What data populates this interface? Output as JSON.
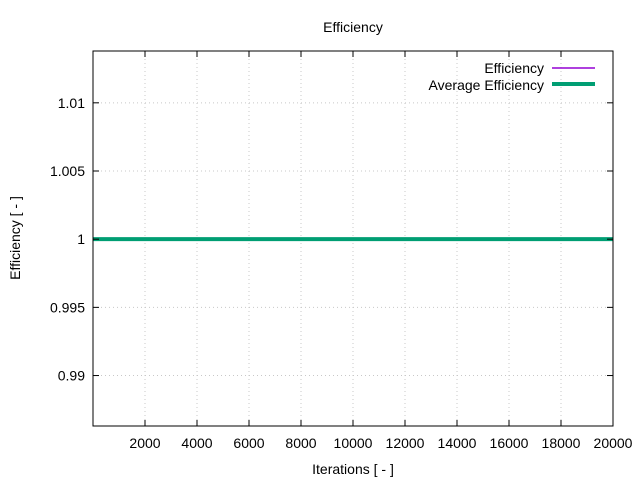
{
  "chart_data": {
    "type": "line",
    "title": "Efficiency",
    "xlabel": "Iterations [ - ]",
    "ylabel": "Efficiency [ - ]",
    "xlim": [
      0,
      20000
    ],
    "ylim": [
      0.9863,
      1.0138
    ],
    "xticks": [
      2000,
      4000,
      6000,
      8000,
      10000,
      12000,
      14000,
      16000,
      18000,
      20000
    ],
    "xtick_labels": [
      "2000",
      "4000",
      "6000",
      "8000",
      "10000",
      "12000",
      "14000",
      "16000",
      "18000",
      "20000"
    ],
    "yticks": [
      0.99,
      0.995,
      1.0,
      1.005,
      1.01
    ],
    "ytick_labels": [
      "0.99",
      "0.995",
      "1",
      "1.005",
      "1.01"
    ],
    "grid": true,
    "legend_position": "top-right",
    "series": [
      {
        "name": "Efficiency",
        "color": "#9400d3",
        "line_width": "thin",
        "x": [
          0,
          20000
        ],
        "y": [
          1,
          1
        ]
      },
      {
        "name": "Average Efficiency",
        "color": "#009e73",
        "line_width": "thick",
        "x": [
          0,
          20000
        ],
        "y": [
          1,
          1
        ]
      }
    ]
  }
}
